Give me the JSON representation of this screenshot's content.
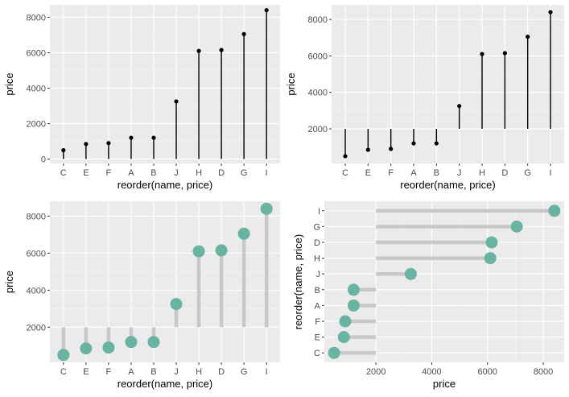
{
  "chart_data": [
    {
      "type": "lollipop",
      "categories": [
        "C",
        "E",
        "F",
        "A",
        "B",
        "J",
        "H",
        "D",
        "G",
        "I"
      ],
      "values": [
        500,
        850,
        900,
        1200,
        1200,
        3250,
        6100,
        6150,
        7050,
        8400
      ],
      "baseline": 0,
      "orientation": "vertical",
      "xlabel": "reorder(name, price)",
      "ylabel": "price",
      "ylim": [
        -250,
        8700
      ],
      "yticks": [
        0,
        2000,
        4000,
        6000,
        8000
      ],
      "style": {
        "segment_color": "#000000",
        "point_color": "#000000",
        "point_size": "small"
      },
      "grid": true
    },
    {
      "type": "lollipop",
      "categories": [
        "C",
        "E",
        "F",
        "A",
        "B",
        "J",
        "H",
        "D",
        "G",
        "I"
      ],
      "values": [
        500,
        850,
        900,
        1200,
        1200,
        3250,
        6100,
        6150,
        7050,
        8400
      ],
      "baseline": 2000,
      "orientation": "vertical",
      "xlabel": "reorder(name, price)",
      "ylabel": "price",
      "ylim": [
        100,
        8800
      ],
      "yticks": [
        2000,
        4000,
        6000,
        8000
      ],
      "style": {
        "segment_color": "#000000",
        "point_color": "#000000",
        "point_size": "small"
      },
      "grid": true
    },
    {
      "type": "lollipop",
      "categories": [
        "C",
        "E",
        "F",
        "A",
        "B",
        "J",
        "H",
        "D",
        "G",
        "I"
      ],
      "values": [
        500,
        850,
        900,
        1200,
        1200,
        3250,
        6100,
        6150,
        7050,
        8400
      ],
      "baseline": 2000,
      "orientation": "vertical",
      "xlabel": "reorder(name, price)",
      "ylabel": "price",
      "ylim": [
        100,
        8800
      ],
      "yticks": [
        2000,
        4000,
        6000,
        8000
      ],
      "style": {
        "segment_color": "#C8C8C8",
        "point_color": "#69B3A2",
        "point_size": "large"
      },
      "grid": true
    },
    {
      "type": "lollipop",
      "categories": [
        "C",
        "E",
        "F",
        "A",
        "B",
        "J",
        "H",
        "D",
        "G",
        "I"
      ],
      "values": [
        500,
        850,
        900,
        1200,
        1200,
        3250,
        6100,
        6150,
        7050,
        8400
      ],
      "baseline": 2000,
      "orientation": "horizontal",
      "xlabel": "price",
      "ylabel": "reorder(name, price)",
      "xlim": [
        150,
        8750
      ],
      "xticks": [
        2000,
        4000,
        6000,
        8000
      ],
      "style": {
        "segment_color": "#C8C8C8",
        "point_color": "#69B3A2",
        "point_size": "large"
      },
      "grid": true
    }
  ],
  "colors": {
    "panel_background": "#EBEBEB",
    "grid_line": "#FFFFFF",
    "tick_label": "#4D4D4D",
    "point_teal": "#69B3A2",
    "segment_grey": "#C8C8C8"
  }
}
